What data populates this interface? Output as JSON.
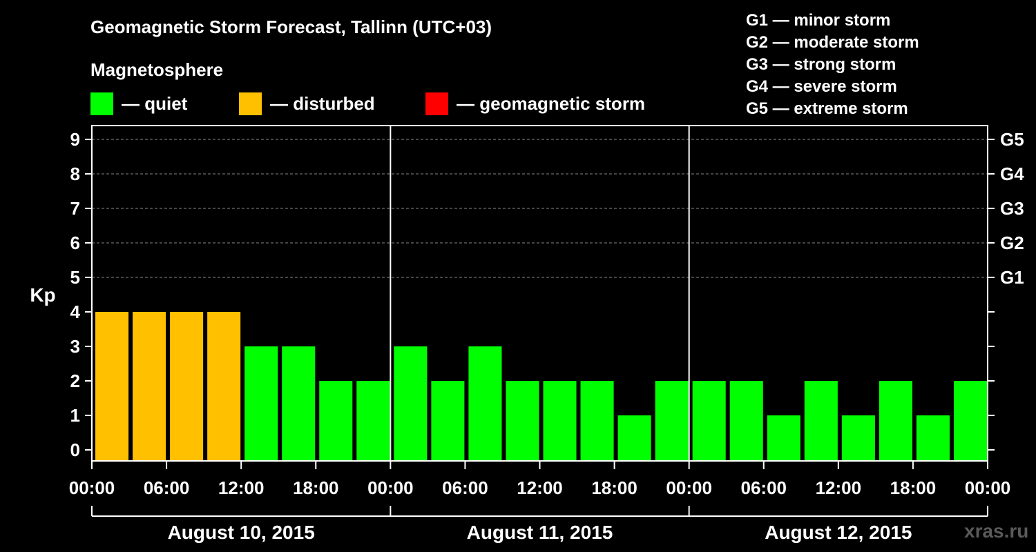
{
  "header": {
    "title": "Geomagnetic Storm Forecast, Tallinn (UTC+03)",
    "magnetosphere_label": "Magnetosphere"
  },
  "legend": {
    "quiet": {
      "label": "— quiet",
      "color": "#00ff00"
    },
    "disturbed": {
      "label": "— disturbed",
      "color": "#ffc000"
    },
    "storm": {
      "label": "— geomagnetic storm",
      "color": "#ff0000"
    }
  },
  "storm_scale": [
    "G1 — minor storm",
    "G2 — moderate storm",
    "G3 — strong storm",
    "G4 — severe storm",
    "G5 — extreme storm"
  ],
  "watermark": "xras.ru",
  "chart_data": {
    "type": "bar",
    "title": "Geomagnetic Storm Forecast, Tallinn (UTC+03)",
    "ylabel": "Kp",
    "xlabel": "",
    "ylim": [
      0,
      9
    ],
    "yticks": [
      "0",
      "1",
      "2",
      "3",
      "4",
      "5",
      "6",
      "7",
      "8",
      "9"
    ],
    "right_axis_ticks": [
      {
        "kp": 5,
        "label": "G1"
      },
      {
        "kp": 6,
        "label": "G2"
      },
      {
        "kp": 7,
        "label": "G3"
      },
      {
        "kp": 8,
        "label": "G4"
      },
      {
        "kp": 9,
        "label": "G5"
      }
    ],
    "xtick_labels": [
      "00:00",
      "06:00",
      "12:00",
      "18:00",
      "00:00",
      "06:00",
      "12:00",
      "18:00",
      "00:00",
      "06:00",
      "12:00",
      "18:00",
      "00:00"
    ],
    "days": [
      "August 10, 2015",
      "August 11, 2015",
      "August 12, 2015"
    ],
    "interval_hours": 3,
    "values": [
      4,
      4,
      4,
      4,
      3,
      3,
      2,
      2,
      3,
      2,
      3,
      2,
      2,
      2,
      1,
      2,
      2,
      2,
      1,
      2,
      1,
      2,
      1,
      2
    ],
    "color_rule": {
      "quiet_max": 3,
      "disturbed_max": 4
    },
    "grid": true
  }
}
